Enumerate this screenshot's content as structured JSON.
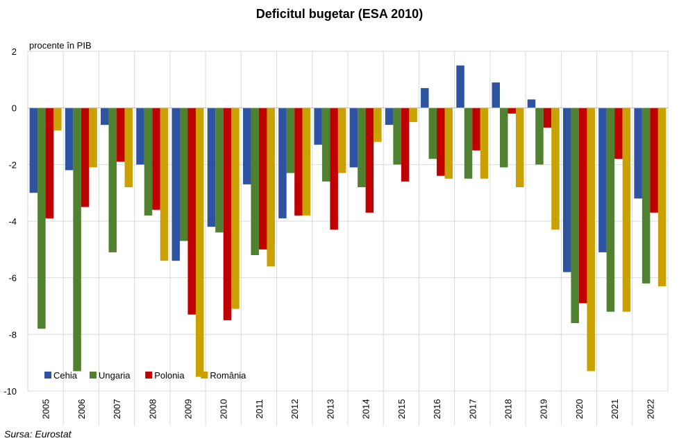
{
  "chart_data": {
    "type": "bar",
    "title": "Deficitul bugetar (ESA 2010)",
    "ylabel": "procente în PIB",
    "ylim": [
      -10,
      2
    ],
    "yticks": [
      2,
      0,
      -2,
      -4,
      -6,
      -8,
      -10
    ],
    "grid": true,
    "legend_position": "bottom-left",
    "categories": [
      "2005",
      "2006",
      "2007",
      "2008",
      "2009",
      "2010",
      "2011",
      "2012",
      "2013",
      "2014",
      "2015",
      "2016",
      "2017",
      "2018",
      "2019",
      "2020",
      "2021",
      "2022"
    ],
    "series": [
      {
        "name": "Cehia",
        "color": "#2E54A1",
        "values": [
          -3.0,
          -2.2,
          -0.6,
          -2.0,
          -5.4,
          -4.2,
          -2.7,
          -3.9,
          -1.3,
          -2.1,
          -0.6,
          0.7,
          1.5,
          0.9,
          0.3,
          -5.8,
          -5.1,
          -3.2
        ]
      },
      {
        "name": "Ungaria",
        "color": "#4F8130",
        "values": [
          -7.8,
          -9.3,
          -5.1,
          -3.8,
          -4.7,
          -4.4,
          -5.2,
          -2.3,
          -2.6,
          -2.8,
          -2.0,
          -1.8,
          -2.5,
          -2.1,
          -2.0,
          -7.6,
          -7.2,
          -6.2
        ]
      },
      {
        "name": "Polonia",
        "color": "#C00000",
        "values": [
          -3.9,
          -3.5,
          -1.9,
          -3.6,
          -7.3,
          -7.5,
          -5.0,
          -3.8,
          -4.3,
          -3.7,
          -2.6,
          -2.4,
          -1.5,
          -0.2,
          -0.7,
          -6.9,
          -1.8,
          -3.7
        ]
      },
      {
        "name": "România",
        "color": "#C9A100",
        "values": [
          -0.8,
          -2.1,
          -2.8,
          -5.4,
          -9.5,
          -7.1,
          -5.6,
          -3.8,
          -2.3,
          -1.2,
          -0.5,
          -2.5,
          -2.5,
          -2.8,
          -4.3,
          -9.3,
          -7.2,
          -6.3
        ]
      }
    ]
  },
  "source": "Sursa: Eurostat"
}
